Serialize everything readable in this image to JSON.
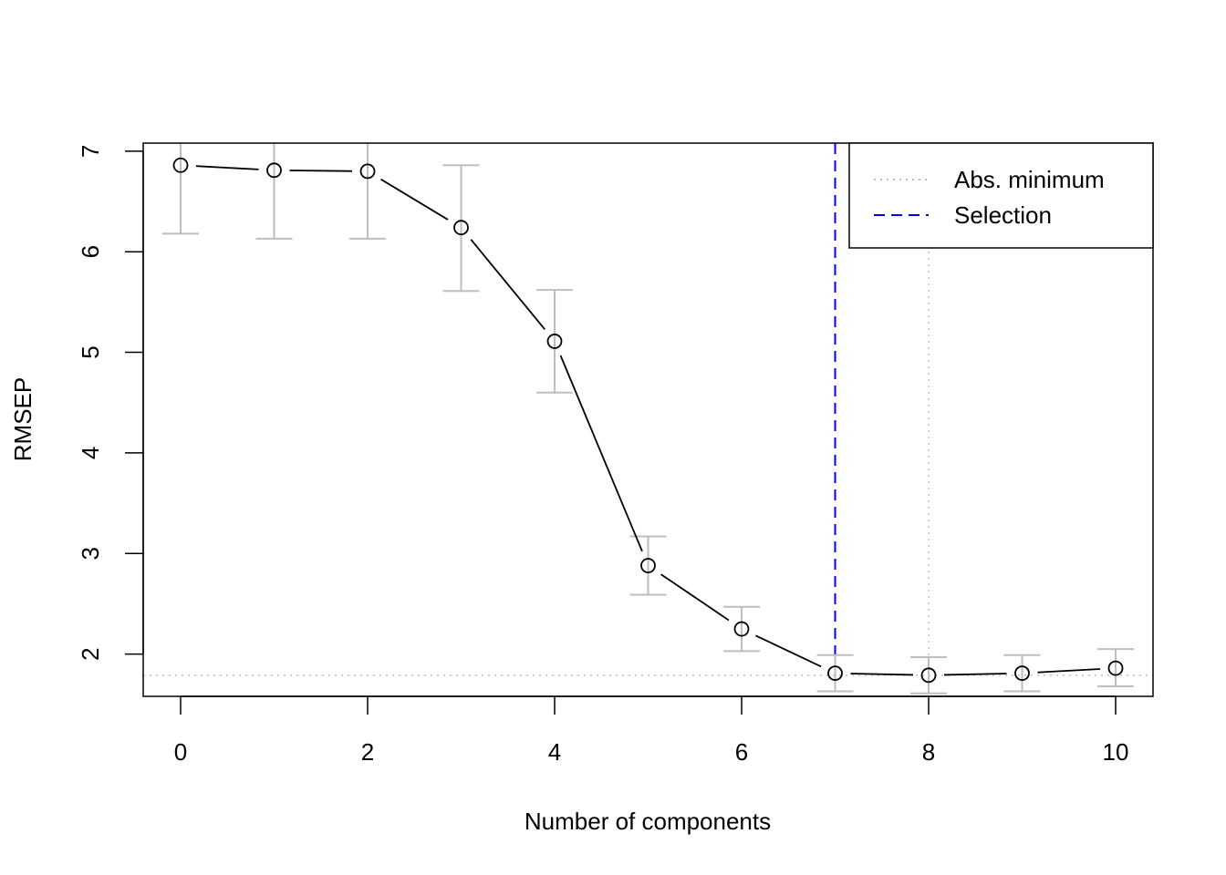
{
  "chart_data": {
    "type": "line",
    "title": "",
    "xlabel": "Number of components",
    "ylabel": "RMSEP",
    "xlim": [
      -0.4,
      10.4
    ],
    "ylim": [
      1.58,
      7.08
    ],
    "x_ticks": [
      0,
      2,
      4,
      6,
      8,
      10
    ],
    "y_ticks": [
      2,
      3,
      4,
      5,
      6,
      7
    ],
    "grid": false,
    "series": [
      {
        "x": [
          0,
          1,
          2,
          3,
          4,
          5,
          6,
          7,
          8,
          9,
          10
        ],
        "values": [
          6.86,
          6.81,
          6.8,
          6.24,
          5.11,
          2.88,
          2.25,
          1.81,
          1.79,
          1.81,
          1.86
        ],
        "error_lower": [
          6.18,
          6.13,
          6.13,
          5.61,
          4.6,
          2.59,
          2.03,
          1.63,
          1.61,
          1.63,
          1.68
        ],
        "error_upper": [
          7.54,
          7.49,
          7.47,
          6.86,
          5.62,
          3.17,
          2.47,
          1.99,
          1.97,
          1.99,
          2.05
        ]
      }
    ],
    "reference_lines": {
      "abs_minimum": {
        "x": 8,
        "y": 1.79,
        "color": "#bebebe",
        "style": "dotted"
      },
      "selection": {
        "x": 7,
        "color": "#0000ff",
        "style": "dashed"
      }
    },
    "legend": {
      "placement": "top-right",
      "entries": [
        {
          "label": "Abs. minimum",
          "color": "#bebebe",
          "style": "dotted"
        },
        {
          "label": "Selection",
          "color": "#0000ff",
          "style": "dashed"
        }
      ]
    },
    "colors": {
      "line": "#000000",
      "error_bars": "#bebebe"
    }
  }
}
